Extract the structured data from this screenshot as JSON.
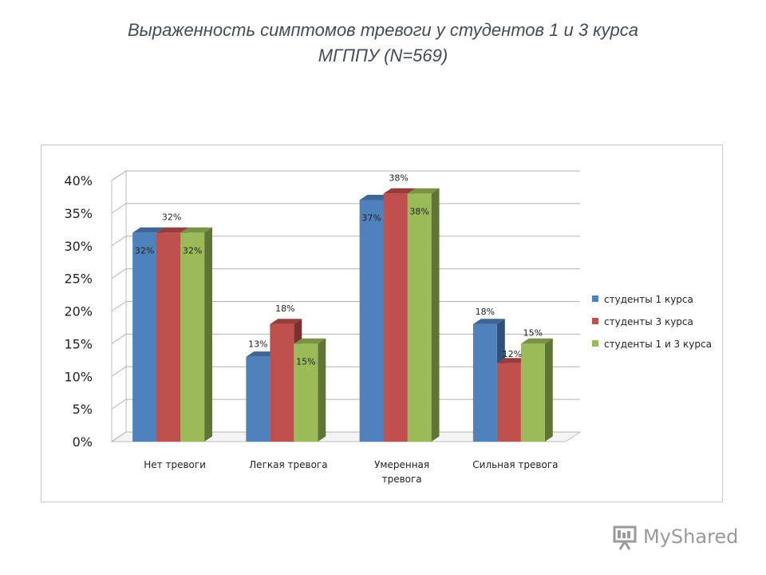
{
  "title": {
    "line1": "Выраженность симптомов тревоги у студентов 1 и 3 курса",
    "line2": "МГППУ (N=569)"
  },
  "chart_data": {
    "type": "bar",
    "categories": [
      "Нет тревоги",
      "Легкая тревога",
      "Умеренная тревога",
      "Сильная тревога"
    ],
    "category_lines": [
      [
        "Нет тревоги"
      ],
      [
        "Легкая тревога"
      ],
      [
        "Умеренная",
        "тревога"
      ],
      [
        "Сильная тревога"
      ]
    ],
    "series": [
      {
        "name": "студенты 1 курса",
        "values": [
          32,
          13,
          37,
          18
        ],
        "labels": [
          "32%",
          "13%",
          "37%",
          "18%"
        ],
        "color": "#4f81bd"
      },
      {
        "name": "студенты 3 курса",
        "values": [
          32,
          18,
          38,
          12
        ],
        "labels": [
          "32%",
          "18%",
          "38%",
          "12%"
        ],
        "color": "#c0504d"
      },
      {
        "name": "студенты 1 и 3 курса",
        "values": [
          32,
          15,
          38,
          15
        ],
        "labels": [
          "32%",
          "15%",
          "38%",
          "15%"
        ],
        "color": "#9bbb59"
      }
    ],
    "ylim": [
      0,
      40
    ],
    "yticks": [
      "0%",
      "5%",
      "10%",
      "15%",
      "20%",
      "25%",
      "30%",
      "35%",
      "40%"
    ],
    "grid": true,
    "legend": "right",
    "projection": "3d-column"
  },
  "watermark": {
    "text": "MyShared",
    "icon": "presentation-board-icon"
  }
}
